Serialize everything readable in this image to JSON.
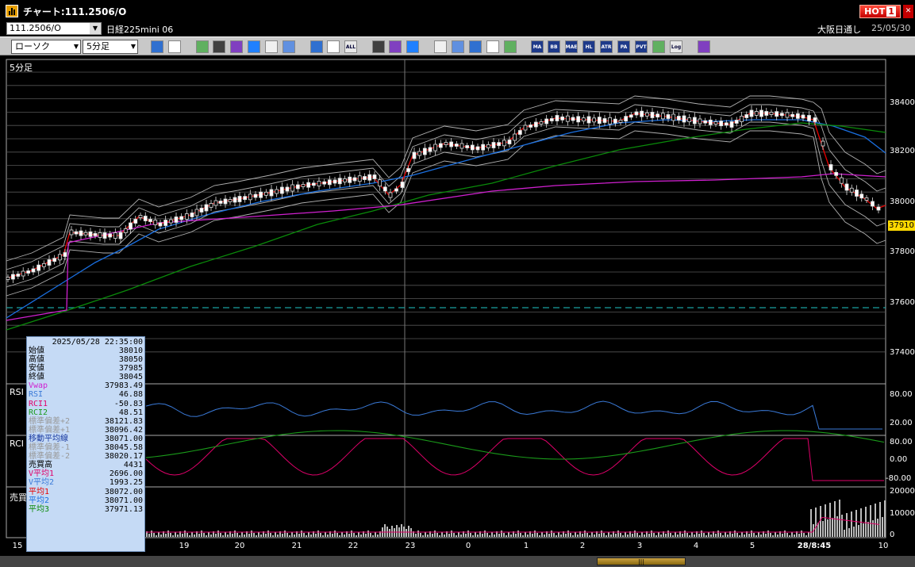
{
  "window": {
    "title": "チャート:111.2506/O",
    "hot_label": "HOT",
    "hot_count": "1"
  },
  "header": {
    "code": "111.2506/O",
    "instrument": "日経225mini 06",
    "exchange": "大阪日通し",
    "date": "25/05/30"
  },
  "toolbar": {
    "chart_type": "ローソク",
    "interval": "5分足",
    "buttons": [
      "zoom",
      "window",
      "pen",
      "scissors",
      "cursor",
      "undo",
      "note",
      "trash",
      "candle",
      "bar",
      "ALL",
      "settings",
      "brush",
      "palette",
      "trade",
      "search",
      "line",
      "cross",
      "info",
      "MA",
      "BB",
      "MAE",
      "HL",
      "ATR",
      "PA",
      "PVT",
      "square",
      "Log",
      "layout"
    ]
  },
  "chart": {
    "period_label": "5分足",
    "panels": {
      "rsi": "RSI",
      "rci": "RCI",
      "volume": "売買"
    },
    "current_price": "37910",
    "y_ticks": [
      "38400",
      "38200",
      "38000",
      "37800",
      "37600",
      "37400"
    ],
    "rsi_ticks": [
      "80.00",
      "20.00"
    ],
    "rci_ticks": [
      "80.00",
      "0.00",
      "-80.00"
    ],
    "vol_ticks": [
      "20000",
      "10000",
      "0"
    ],
    "x_ticks": [
      "15",
      "19",
      "20",
      "21",
      "22",
      "23",
      "0",
      "1",
      "2",
      "3",
      "4",
      "5",
      "28/8:45",
      "10"
    ],
    "colors": {
      "price_line": "#e60000",
      "bb": "#b0b0b0",
      "ma_fast": "#1a6fe0",
      "ma_slow": "#0a8a0a",
      "vwap": "#d020d0",
      "rsi": "#3a7ad8",
      "rci1": "#e0006a",
      "rci2": "#1a9a1a",
      "dash": "#1aa0a0"
    }
  },
  "data_window": {
    "timestamp": "2025/05/28 22:35:00",
    "rows": [
      {
        "label": "始値",
        "value": "38010",
        "color": "#000"
      },
      {
        "label": "高値",
        "value": "38050",
        "color": "#000"
      },
      {
        "label": "安値",
        "value": "37985",
        "color": "#000"
      },
      {
        "label": "終値",
        "value": "38045",
        "color": "#000"
      },
      {
        "label": "Vwap",
        "value": "37983.49",
        "color": "#d020d0"
      },
      {
        "label": "RSI",
        "value": "46.88",
        "color": "#3a7ad8"
      },
      {
        "label": "RCI1",
        "value": "-50.83",
        "color": "#e0006a"
      },
      {
        "label": "RCI2",
        "value": "48.51",
        "color": "#1a9a1a"
      },
      {
        "label": "標準偏差+2",
        "value": "38121.83",
        "color": "#999"
      },
      {
        "label": "標準偏差+1",
        "value": "38096.42",
        "color": "#999"
      },
      {
        "label": "移動平均線",
        "value": "38071.00",
        "color": "#1a3aa0"
      },
      {
        "label": "標準偏差-1",
        "value": "38045.58",
        "color": "#999"
      },
      {
        "label": "標準偏差-2",
        "value": "38020.17",
        "color": "#999"
      },
      {
        "label": "売買高",
        "value": "4431",
        "color": "#000"
      },
      {
        "label": "V平均1",
        "value": "2696.00",
        "color": "#e0006a"
      },
      {
        "label": "V平均2",
        "value": "1993.25",
        "color": "#3a7ad8"
      },
      {
        "label": "平均1",
        "value": "38072.00",
        "color": "#e60000"
      },
      {
        "label": "平均2",
        "value": "38071.00",
        "color": "#1a6fe0"
      },
      {
        "label": "平均3",
        "value": "37971.13",
        "color": "#0a8a0a"
      }
    ]
  }
}
